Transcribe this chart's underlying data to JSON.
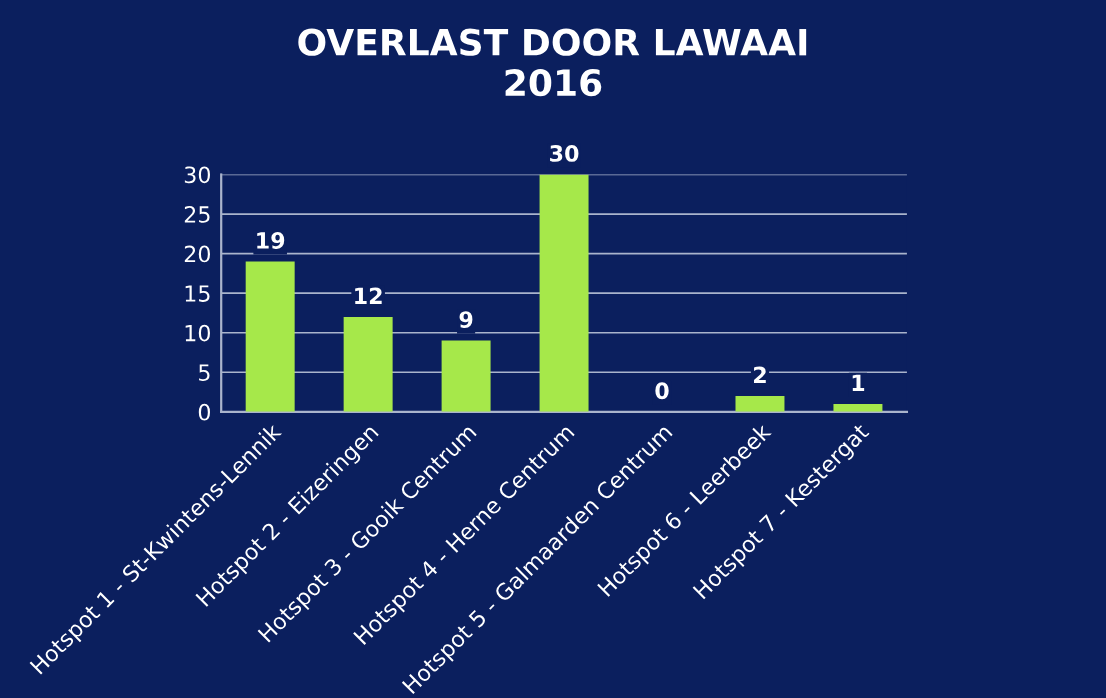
{
  "chart_data": {
    "type": "bar",
    "title": "OVERLAST DOOR LAWAAI\n2016",
    "categories": [
      "Hotspot 1 - St-Kwintens-Lennik",
      "Hotspot 2 - Eizeringen",
      "Hotspot 3 - Gooik Centrum",
      "Hotspot 4 - Herne Centrum",
      "Hotspot 5 - Galmaarden Centrum",
      "Hotspot 6 - Leerbeek",
      "Hotspot 7 - Kestergat"
    ],
    "values": [
      19,
      12,
      9,
      30,
      0,
      2,
      1
    ],
    "color": "#a6e84a",
    "ylim": [
      0,
      30
    ],
    "yticks": [
      0,
      5,
      10,
      15,
      20,
      25,
      30
    ],
    "grid": "y",
    "data_labels": true
  }
}
